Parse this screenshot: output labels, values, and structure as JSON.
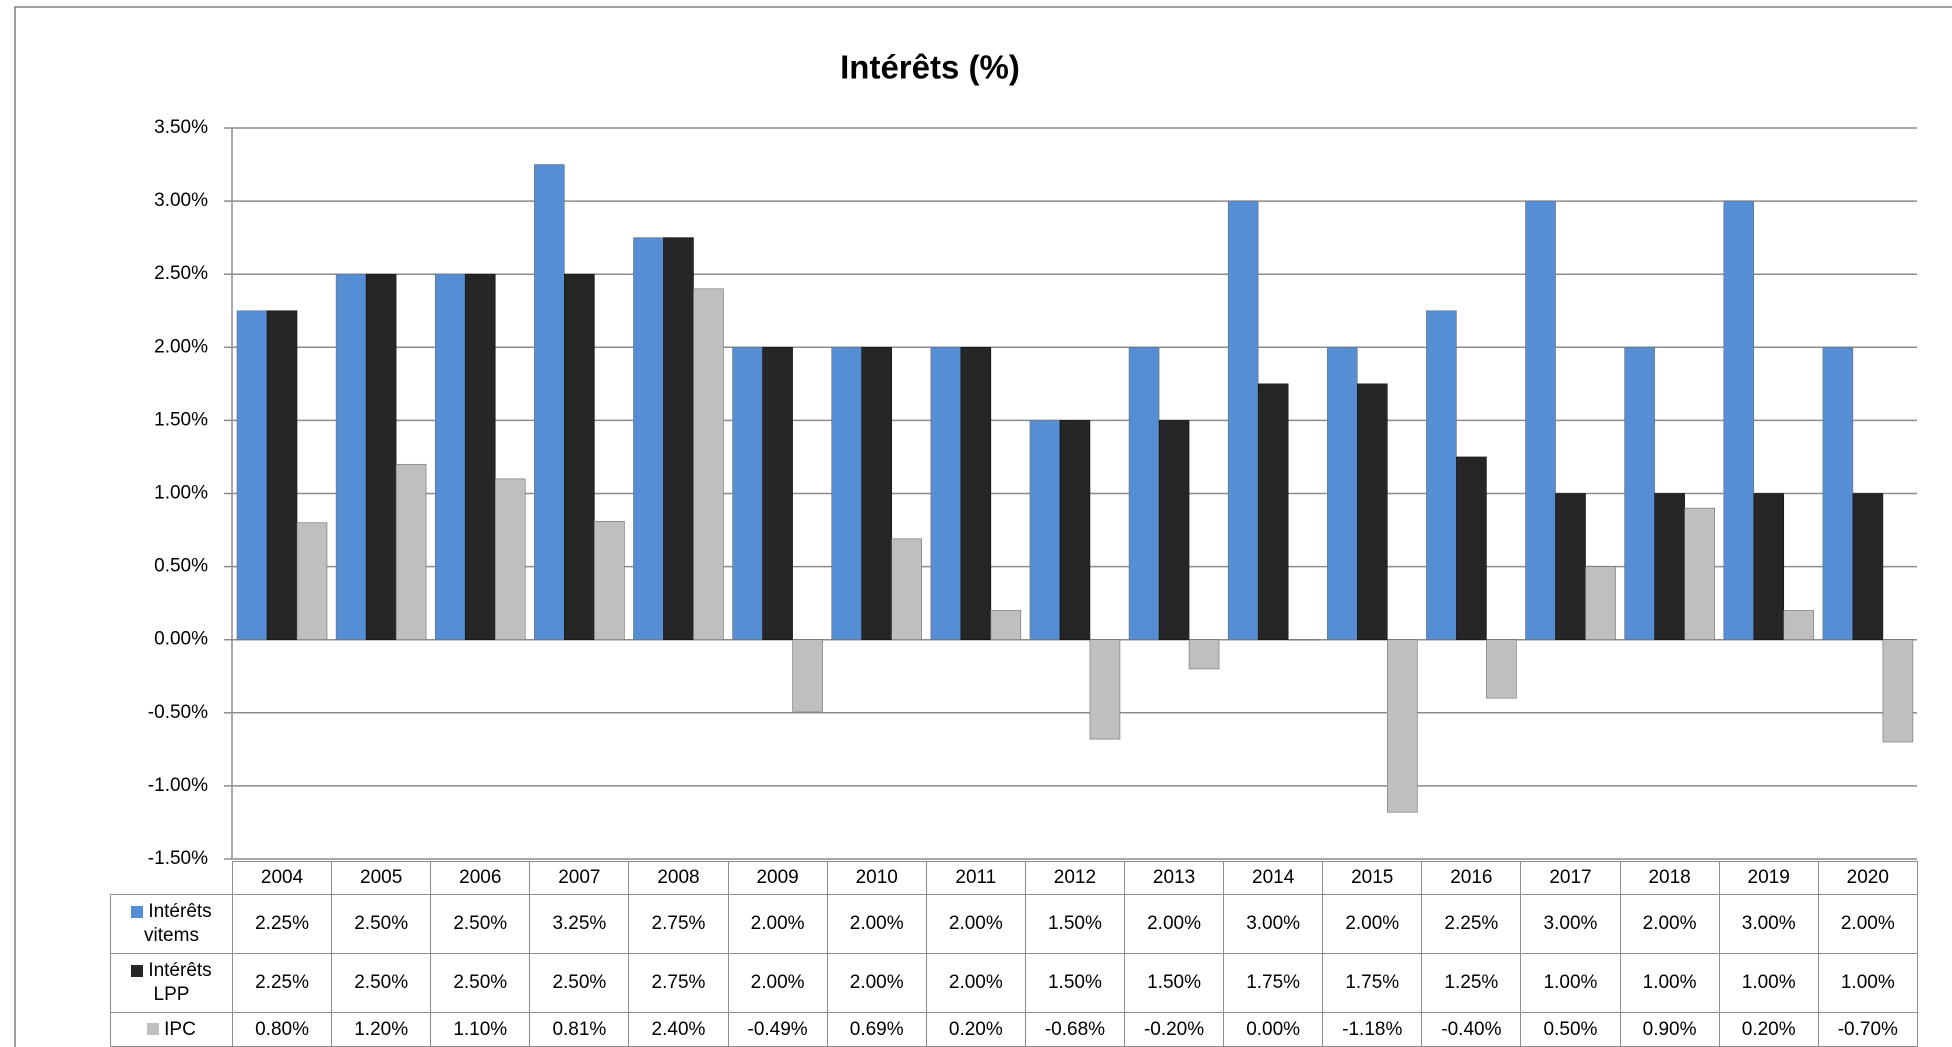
{
  "chart_data": {
    "type": "bar",
    "title": "Intérêts (%)",
    "categories": [
      "2004",
      "2005",
      "2006",
      "2007",
      "2008",
      "2009",
      "2010",
      "2011",
      "2012",
      "2013",
      "2014",
      "2015",
      "2016",
      "2017",
      "2018",
      "2019",
      "2020"
    ],
    "series": [
      {
        "name": "Intérêts vitems",
        "color": "#558ed5",
        "values": [
          2.25,
          2.5,
          2.5,
          3.25,
          2.75,
          2.0,
          2.0,
          2.0,
          1.5,
          2.0,
          3.0,
          2.0,
          2.25,
          3.0,
          2.0,
          3.0,
          2.0
        ],
        "value_labels": [
          "2.25%",
          "2.50%",
          "2.50%",
          "3.25%",
          "2.75%",
          "2.00%",
          "2.00%",
          "2.00%",
          "1.50%",
          "2.00%",
          "3.00%",
          "2.00%",
          "2.25%",
          "3.00%",
          "2.00%",
          "3.00%",
          "2.00%"
        ]
      },
      {
        "name": "Intérêts LPP",
        "color": "#262626",
        "values": [
          2.25,
          2.5,
          2.5,
          2.5,
          2.75,
          2.0,
          2.0,
          2.0,
          1.5,
          1.5,
          1.75,
          1.75,
          1.25,
          1.0,
          1.0,
          1.0,
          1.0
        ],
        "value_labels": [
          "2.25%",
          "2.50%",
          "2.50%",
          "2.50%",
          "2.75%",
          "2.00%",
          "2.00%",
          "2.00%",
          "1.50%",
          "1.50%",
          "1.75%",
          "1.75%",
          "1.25%",
          "1.00%",
          "1.00%",
          "1.00%",
          "1.00%"
        ]
      },
      {
        "name": "IPC",
        "color": "#bfbfbf",
        "values": [
          0.8,
          1.2,
          1.1,
          0.81,
          2.4,
          -0.49,
          0.69,
          0.2,
          -0.68,
          -0.2,
          0.0,
          -1.18,
          -0.4,
          0.5,
          0.9,
          0.2,
          -0.7
        ],
        "value_labels": [
          "0.80%",
          "1.20%",
          "1.10%",
          "0.81%",
          "2.40%",
          "-0.49%",
          "0.69%",
          "0.20%",
          "-0.68%",
          "-0.20%",
          "0.00%",
          "-1.18%",
          "-0.40%",
          "0.50%",
          "0.90%",
          "0.20%",
          "-0.70%"
        ]
      }
    ],
    "ylim": [
      -1.5,
      3.5
    ],
    "yticks": [
      {
        "value": -1.5,
        "label": "-1.50%"
      },
      {
        "value": -1.0,
        "label": "-1.00%"
      },
      {
        "value": -0.5,
        "label": "-0.50%"
      },
      {
        "value": 0,
        "label": "0.00%"
      },
      {
        "value": 0.5,
        "label": "0.50%"
      },
      {
        "value": 1.0,
        "label": "1.00%"
      },
      {
        "value": 1.5,
        "label": "1.50%"
      },
      {
        "value": 2.0,
        "label": "2.00%"
      },
      {
        "value": 2.5,
        "label": "2.50%"
      },
      {
        "value": 3.0,
        "label": "3.00%"
      },
      {
        "value": 3.5,
        "label": "3.50%"
      }
    ],
    "grid": true
  }
}
